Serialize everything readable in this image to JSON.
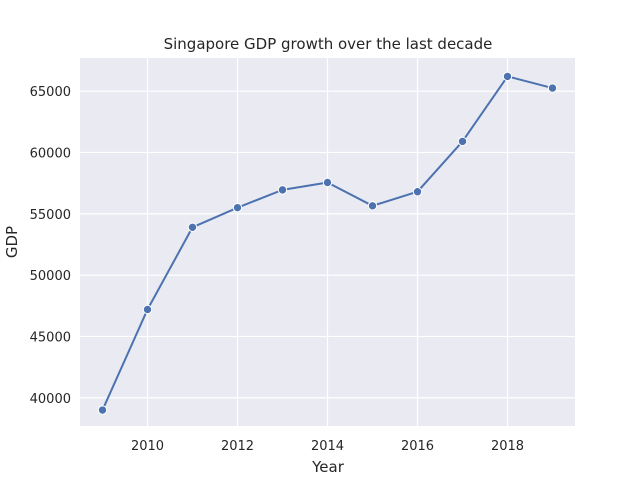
{
  "chart_data": {
    "type": "line",
    "title": "Singapore GDP growth over the last decade",
    "xlabel": "Year",
    "ylabel": "GDP",
    "xlim": [
      2008.5,
      2019.5
    ],
    "ylim": [
      37700,
      67700
    ],
    "xticks": [
      2010,
      2012,
      2014,
      2016,
      2018
    ],
    "yticks": [
      40000,
      45000,
      50000,
      55000,
      60000,
      65000
    ],
    "grid": true,
    "legend": "none",
    "series": [
      {
        "color": "#4c72b0",
        "marker": "circle",
        "x": [
          2009,
          2010,
          2011,
          2012,
          2013,
          2014,
          2015,
          2016,
          2017,
          2018,
          2019
        ],
        "y": [
          39000,
          47200,
          53900,
          55500,
          56950,
          57550,
          55650,
          56800,
          60900,
          66200,
          65250
        ]
      }
    ],
    "colors": {
      "plot_background": "#eaeaf2",
      "grid": "#ffffff",
      "text": "#262626"
    }
  }
}
